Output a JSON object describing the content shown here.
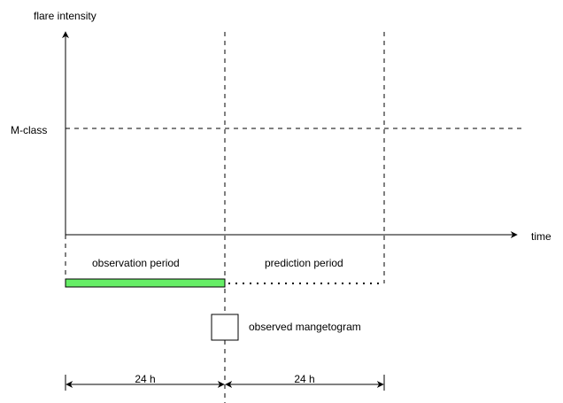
{
  "labels": {
    "y_axis": "flare intensity",
    "x_axis": "time",
    "threshold": "M-class",
    "observation": "observation period",
    "prediction": "prediction period",
    "magnetogram": "observed mangetogram",
    "span_left": "24 h",
    "span_right": "24 h"
  },
  "colors": {
    "observation_bar": "#66ee66",
    "line": "#000000",
    "background": "#ffffff"
  }
}
